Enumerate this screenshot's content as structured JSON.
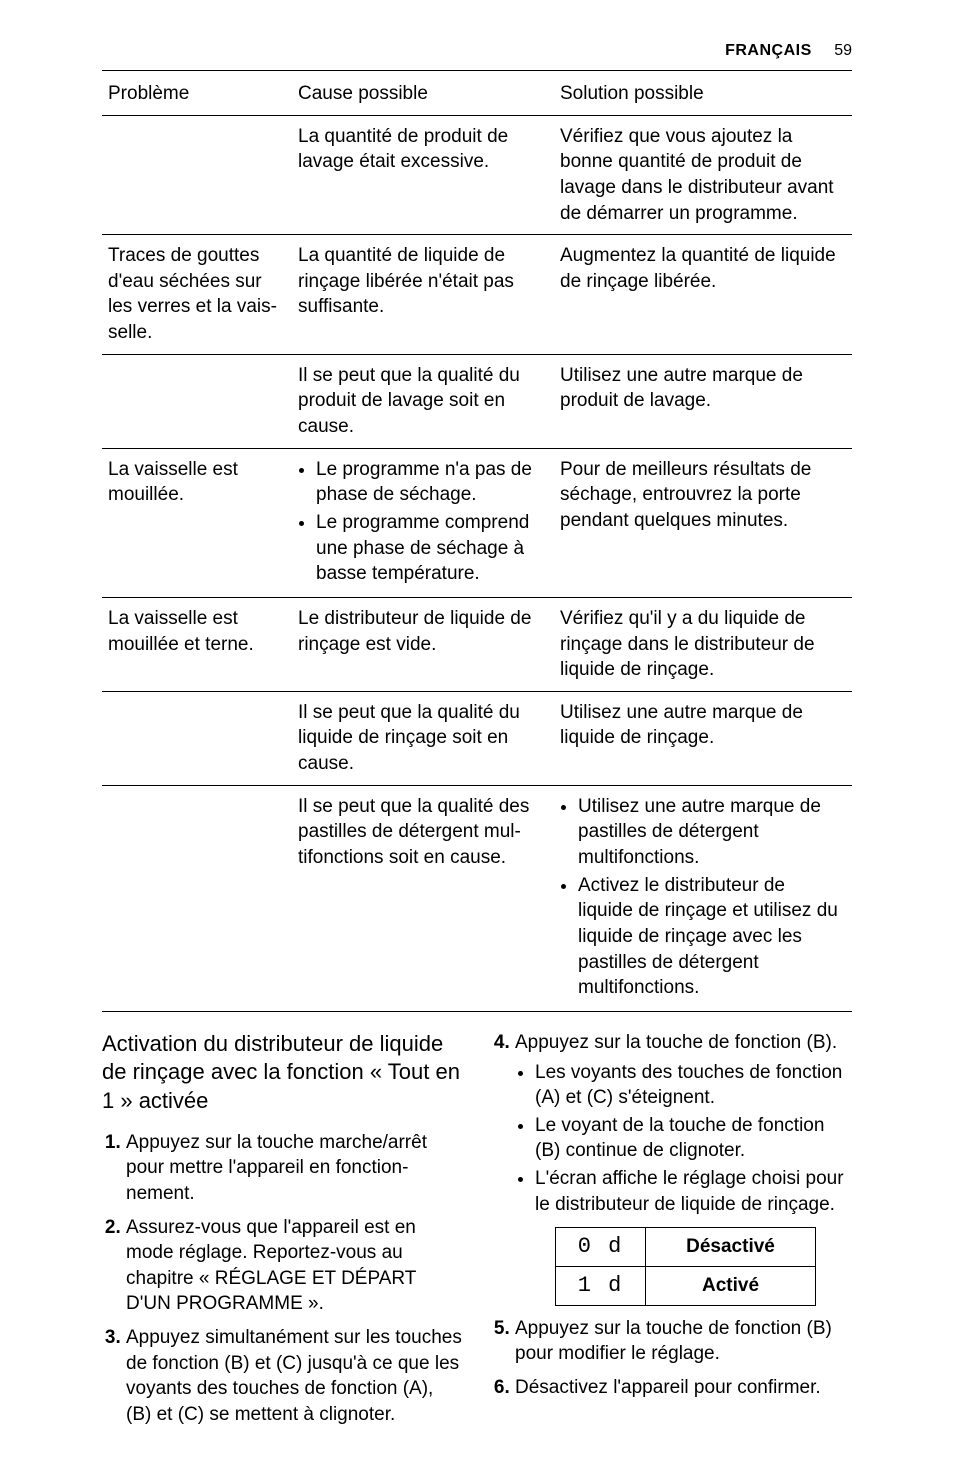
{
  "header": {
    "language": "FRANÇAIS",
    "page_number": "59"
  },
  "table": {
    "headers": {
      "problem": "Problème",
      "cause": "Cause possible",
      "solution": "Solution possible"
    },
    "rows": [
      {
        "problem": "",
        "cause": "La quantité de produit de lavage était excessive.",
        "solution": "Vérifiez que vous ajoutez la bonne quantité de produit de lavage dans le distribu­teur avant de démarrer un programme."
      },
      {
        "problem": "Traces de gouttes d'eau séchées sur les verres et la vais­selle.",
        "cause": "La quantité de liquide de rinçage libérée n'était pas suffisante.",
        "solution": "Augmentez la quantité de li­quide de rinçage libérée."
      },
      {
        "problem": "",
        "cause": "Il se peut que la qualité du produit de lavage soit en cause.",
        "solution": "Utilisez une autre marque de produit de lavage."
      },
      {
        "problem": "La vaisselle est mouillée.",
        "cause_items": [
          "Le programme n'a pas de phase de séchage.",
          "Le programme comprend une phase de séchage à basse température."
        ],
        "solution": "Pour de meilleurs résultats de séchage, entrouvrez la porte pendant quelques mi­nutes."
      },
      {
        "problem": "La vaisselle est mouillée et terne.",
        "cause": "Le distributeur de liquide de rinçage est vide.",
        "solution": "Vérifiez qu'il y a du liquide de rinçage dans le distribu­teur de liquide de rinçage."
      },
      {
        "problem": "",
        "cause": "Il se peut que la qualité du liquide de rinçage soit en cause.",
        "solution": "Utilisez une autre marque de liquide de rinçage."
      },
      {
        "problem": "",
        "cause": "Il se peut que la qualité des pastilles de détergent mul­tifonctions soit en cause.",
        "solution_items": [
          "Utilisez une autre marque de pastilles de détergent multifonctions.",
          "Activez le distributeur de liquide de rinçage et utili­sez du liquide de rinçage avec les pastilles de déter­gent multifonctions."
        ]
      }
    ]
  },
  "section": {
    "title": "Activation du distributeur de liquide de rinçage avec la fonction « Tout en 1 » activée",
    "steps_left": [
      "Appuyez sur la touche marche/arrêt pour mettre l'appareil en fonction­nement.",
      "Assurez-vous que l'appareil est en mode réglage. Reportez-vous au chapitre « RÉGLAGE ET DÉPART D'UN PROGRAMME ».",
      "Appuyez simultanément sur les tou­ches de fonction (B) et (C) jusqu'à ce que les voyants des touches de fonction (A), (B) et (C) se mettent à clignoter."
    ],
    "step4_lead": "Appuyez sur la touche de fonction (B).",
    "step4_sub": [
      "Les voyants des touches de fonc­tion (A) et (C) s'éteignent.",
      "Le voyant de la touche de fonc­tion (B) continue de clignoter.",
      "L'écran affiche le réglage choisi pour le distributeur de liquide de rinçage."
    ],
    "display_table": [
      {
        "code": "0 d",
        "label": "Désactivé"
      },
      {
        "code": "1 d",
        "label": "Activé"
      }
    ],
    "step5": "Appuyez sur la touche de fonction (B) pour modifier le réglage.",
    "step6": "Désactivez l'appareil pour confir­mer."
  }
}
